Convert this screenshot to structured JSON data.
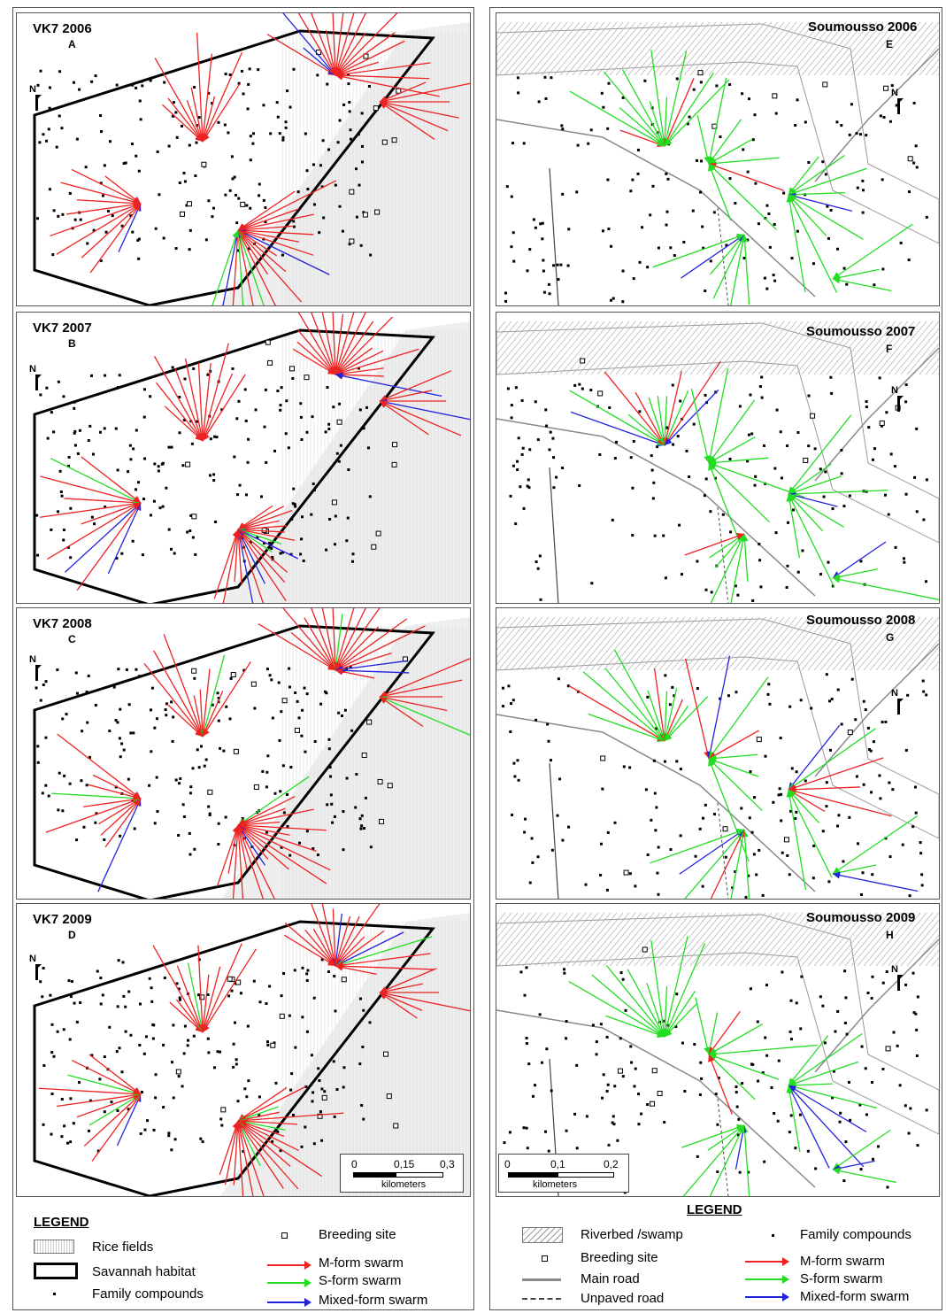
{
  "colors": {
    "m_form": "#ee2222",
    "s_form": "#22dd22",
    "mixed_form": "#2222dd",
    "swamp": "#999999",
    "road": "#888888"
  },
  "panels": [
    {
      "id": "A",
      "title": "VK7 2006",
      "letter": "A"
    },
    {
      "id": "B",
      "title": "VK7 2007",
      "letter": "B"
    },
    {
      "id": "C",
      "title": "VK7 2008",
      "letter": "C"
    },
    {
      "id": "D",
      "title": "VK7 2009",
      "letter": "D"
    },
    {
      "id": "E",
      "title": "Soumousso 2006",
      "letter": "E"
    },
    {
      "id": "F",
      "title": "Soumousso 2007",
      "letter": "F"
    },
    {
      "id": "G",
      "title": "Soumousso 2008",
      "letter": "G"
    },
    {
      "id": "H",
      "title": "Soumousso 2009",
      "letter": "H"
    }
  ],
  "north_label": "N",
  "scale_left": {
    "ticks": [
      "0",
      "0,15",
      "0,3"
    ],
    "unit": "kilometers"
  },
  "scale_right": {
    "ticks": [
      "0",
      "0,1",
      "0,2"
    ],
    "unit": "kilometers"
  },
  "legend_left": {
    "title": "LEGEND",
    "rice": "Rice fields",
    "savannah": "Savannah habitat",
    "family": "Family compounds",
    "breeding": "Breeding site",
    "m_form": "M-form swarm",
    "s_form": "S-form swarm",
    "mixed": "Mixed-form swarm"
  },
  "legend_right": {
    "title": "LEGEND",
    "swamp": "Riverbed /swamp",
    "breeding": "Breeding site",
    "main_road": "Main road",
    "unpaved": "Unpaved road",
    "family": "Family compounds",
    "m_form": "M-form swarm",
    "s_form": "S-form swarm",
    "mixed": "Mixed-form swarm"
  }
}
